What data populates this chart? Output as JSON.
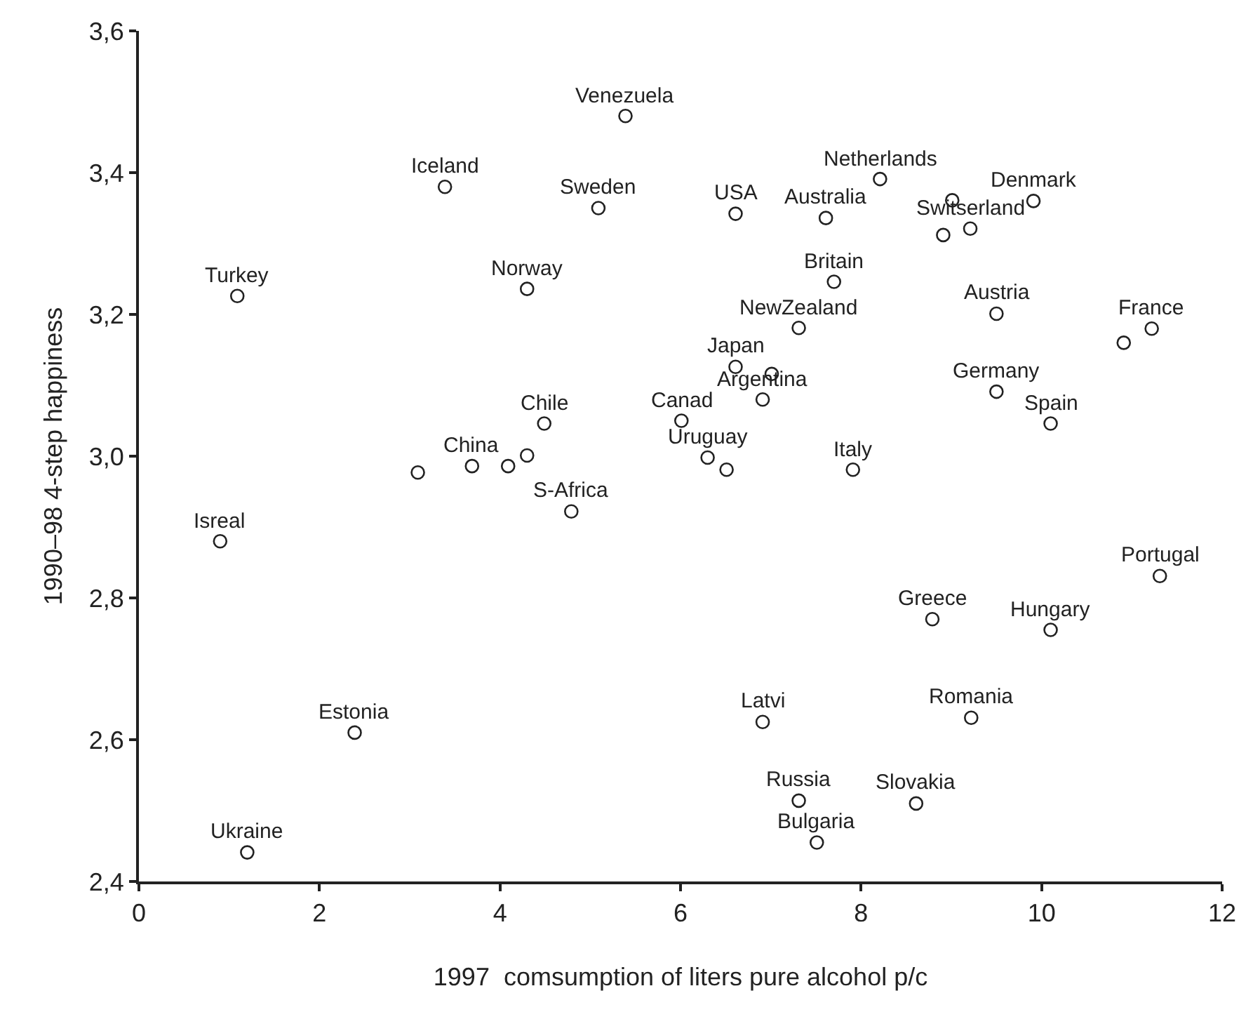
{
  "chart_data": {
    "type": "scatter",
    "xlabel": "1997  comsumption of liters pure alcohol p/c",
    "ylabel": "1990–98 4-step happiness",
    "xlim": [
      0,
      12
    ],
    "xticks": [
      0,
      2,
      4,
      6,
      8,
      10,
      12
    ],
    "ylim": [
      2.4,
      3.6
    ],
    "yticks": [
      {
        "value": 2.4,
        "label": "2,4"
      },
      {
        "value": 2.6,
        "label": "2,6"
      },
      {
        "value": 2.8,
        "label": "2,8"
      },
      {
        "value": 3.0,
        "label": "3,0"
      },
      {
        "value": 3.2,
        "label": "3,2"
      },
      {
        "value": 3.4,
        "label": "3,4"
      },
      {
        "value": 3.6,
        "label": "3,6"
      }
    ],
    "marker": "circle",
    "series": [
      {
        "color": "#222222",
        "x": [
          5.39,
          3.39,
          5.09,
          1.09,
          4.3,
          4.49,
          3.09,
          3.69,
          4.09,
          4.3,
          4.79,
          8.21,
          6.61,
          7.61,
          9.01,
          9.91,
          8.91,
          9.21,
          7.7,
          7.31,
          9.5,
          10.91,
          11.22,
          6.61,
          7.01,
          6.91,
          9.5,
          10.1,
          6.01,
          6.3,
          6.51,
          7.91,
          0.9,
          2.39,
          1.2,
          11.31,
          8.79,
          10.1,
          6.91,
          9.22,
          7.31,
          8.61,
          7.51
        ],
        "values": [
          3.48,
          3.38,
          3.35,
          3.226,
          3.236,
          3.046,
          2.977,
          2.986,
          2.986,
          3.001,
          2.922,
          3.391,
          3.342,
          3.336,
          3.361,
          3.36,
          3.312,
          3.321,
          3.246,
          3.181,
          3.201,
          3.16,
          3.18,
          3.126,
          3.116,
          3.08,
          3.091,
          3.046,
          3.05,
          2.998,
          2.981,
          2.981,
          2.88,
          2.61,
          2.441,
          2.831,
          2.77,
          2.755,
          2.625,
          2.631,
          2.514,
          2.51,
          2.455
        ]
      }
    ],
    "annotations": [
      {
        "text": "Venezuela",
        "x": 5.39,
        "y": 3.48
      },
      {
        "text": "Iceland",
        "x": 3.39,
        "y": 3.38
      },
      {
        "text": "Sweden",
        "x": 5.09,
        "y": 3.35
      },
      {
        "text": "Turkey",
        "x": 1.09,
        "y": 3.226
      },
      {
        "text": "Norway",
        "x": 4.3,
        "y": 3.236
      },
      {
        "text": "Chile",
        "x": 4.49,
        "y": 3.046
      },
      {
        "text": "China",
        "x": 3.69,
        "y": 2.986
      },
      {
        "text": "S-Africa",
        "x": 4.79,
        "y": 2.922
      },
      {
        "text": "Netherlands",
        "x": 8.21,
        "y": 3.391
      },
      {
        "text": "USA",
        "x": 6.61,
        "y": 3.342
      },
      {
        "text": "Australia",
        "x": 7.61,
        "y": 3.336
      },
      {
        "text": "Denmark",
        "x": 9.91,
        "y": 3.36
      },
      {
        "text": "Switserland",
        "x": 9.21,
        "y": 3.321
      },
      {
        "text": "Britain",
        "x": 7.7,
        "y": 3.246
      },
      {
        "text": "NewZealand",
        "x": 7.31,
        "y": 3.181
      },
      {
        "text": "Austria",
        "x": 9.5,
        "y": 3.201
      },
      {
        "text": "France",
        "x": 11.22,
        "y": 3.18
      },
      {
        "text": "Japan",
        "x": 6.61,
        "y": 3.126
      },
      {
        "text": "Argentina",
        "x": 6.91,
        "y": 3.08
      },
      {
        "text": "Germany",
        "x": 9.5,
        "y": 3.091
      },
      {
        "text": "Spain",
        "x": 10.1,
        "y": 3.046
      },
      {
        "text": "Canad",
        "x": 6.01,
        "y": 3.05
      },
      {
        "text": "Uruguay",
        "x": 6.3,
        "y": 2.998
      },
      {
        "text": "Italy",
        "x": 7.91,
        "y": 2.981
      },
      {
        "text": "Isreal",
        "x": 0.9,
        "y": 2.88
      },
      {
        "text": "Estonia",
        "x": 2.39,
        "y": 2.61
      },
      {
        "text": "Ukraine",
        "x": 1.2,
        "y": 2.441
      },
      {
        "text": "Portugal",
        "x": 11.31,
        "y": 2.831
      },
      {
        "text": "Greece",
        "x": 8.79,
        "y": 2.77
      },
      {
        "text": "Hungary",
        "x": 10.1,
        "y": 2.755
      },
      {
        "text": "Latvi",
        "x": 6.91,
        "y": 2.625
      },
      {
        "text": "Romania",
        "x": 9.22,
        "y": 2.631
      },
      {
        "text": "Russia",
        "x": 7.31,
        "y": 2.514
      },
      {
        "text": "Slovakia",
        "x": 8.61,
        "y": 2.51
      },
      {
        "text": "Bulgaria",
        "x": 7.51,
        "y": 2.455
      }
    ]
  }
}
